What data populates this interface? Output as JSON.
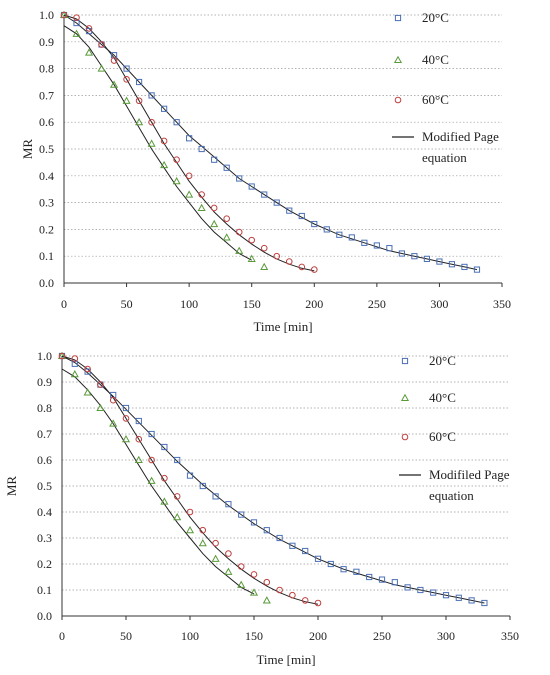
{
  "chart_data": [
    {
      "type": "scatter",
      "title": "",
      "xlabel": "Time [min]",
      "ylabel": "MR",
      "xlim": [
        0,
        350
      ],
      "ylim": [
        0,
        1.0
      ],
      "xticks": [
        "0",
        "50",
        "100",
        "150",
        "200",
        "250",
        "300",
        "350"
      ],
      "yticks": [
        "0.0",
        "0.1",
        "0.2",
        "0.3",
        "0.4",
        "0.5",
        "0.6",
        "0.7",
        "0.8",
        "0.9",
        "1.0"
      ],
      "grid": "horizontal dotted",
      "legend_position": "right",
      "fit_label": "Modified Page equation",
      "fit_label_lines": [
        "Modified Page",
        "equation"
      ],
      "series": [
        {
          "name": "20°C",
          "marker": "square",
          "color": "#4a6fb5",
          "x": [
            0,
            10,
            20,
            30,
            40,
            50,
            60,
            70,
            80,
            90,
            100,
            110,
            120,
            130,
            140,
            150,
            160,
            170,
            180,
            190,
            200,
            210,
            220,
            230,
            240,
            250,
            260,
            270,
            280,
            290,
            300,
            310,
            320,
            330
          ],
          "y": [
            1.0,
            0.97,
            0.94,
            0.89,
            0.85,
            0.8,
            0.75,
            0.7,
            0.65,
            0.6,
            0.54,
            0.5,
            0.46,
            0.43,
            0.39,
            0.36,
            0.33,
            0.3,
            0.27,
            0.25,
            0.22,
            0.2,
            0.18,
            0.17,
            0.15,
            0.14,
            0.13,
            0.11,
            0.1,
            0.09,
            0.08,
            0.07,
            0.06,
            0.05
          ],
          "fit_x": [
            0,
            10,
            20,
            30,
            40,
            50,
            60,
            70,
            80,
            90,
            100,
            110,
            120,
            130,
            140,
            150,
            160,
            170,
            180,
            190,
            200,
            210,
            220,
            230,
            240,
            250,
            260,
            270,
            280,
            290,
            300,
            310,
            320,
            330
          ],
          "fit_y": [
            1.0,
            0.97,
            0.93,
            0.89,
            0.85,
            0.8,
            0.75,
            0.7,
            0.65,
            0.6,
            0.55,
            0.51,
            0.47,
            0.43,
            0.39,
            0.36,
            0.33,
            0.3,
            0.27,
            0.245,
            0.22,
            0.2,
            0.18,
            0.165,
            0.15,
            0.135,
            0.12,
            0.11,
            0.1,
            0.09,
            0.08,
            0.07,
            0.06,
            0.05
          ]
        },
        {
          "name": "40°C",
          "marker": "triangle",
          "color": "#5a9a3a",
          "x": [
            0,
            10,
            20,
            30,
            40,
            50,
            60,
            70,
            80,
            90,
            100,
            110,
            120,
            130,
            140,
            150,
            160
          ],
          "y": [
            1.0,
            0.93,
            0.86,
            0.8,
            0.74,
            0.68,
            0.6,
            0.52,
            0.44,
            0.38,
            0.33,
            0.28,
            0.22,
            0.17,
            0.12,
            0.09,
            0.06
          ],
          "fit_x": [
            0,
            10,
            20,
            30,
            40,
            50,
            60,
            70,
            80,
            90,
            100,
            110,
            120,
            130,
            140,
            150
          ],
          "fit_y": [
            0.96,
            0.93,
            0.88,
            0.81,
            0.74,
            0.66,
            0.58,
            0.5,
            0.43,
            0.36,
            0.3,
            0.24,
            0.19,
            0.15,
            0.11,
            0.085
          ]
        },
        {
          "name": "60°C",
          "marker": "circle",
          "color": "#c04040",
          "x": [
            0,
            10,
            20,
            30,
            40,
            50,
            60,
            70,
            80,
            90,
            100,
            110,
            120,
            130,
            140,
            150,
            160,
            170,
            180,
            190,
            200
          ],
          "y": [
            1.0,
            0.99,
            0.95,
            0.89,
            0.83,
            0.76,
            0.68,
            0.6,
            0.53,
            0.46,
            0.4,
            0.33,
            0.28,
            0.24,
            0.19,
            0.16,
            0.13,
            0.1,
            0.08,
            0.06,
            0.05
          ],
          "fit_x": [
            0,
            10,
            20,
            30,
            40,
            50,
            60,
            70,
            80,
            90,
            100,
            110,
            120,
            130,
            140,
            150,
            160,
            170,
            180,
            190,
            200
          ],
          "fit_y": [
            1.0,
            0.985,
            0.95,
            0.9,
            0.84,
            0.76,
            0.68,
            0.6,
            0.52,
            0.45,
            0.38,
            0.32,
            0.265,
            0.22,
            0.18,
            0.145,
            0.115,
            0.09,
            0.07,
            0.055,
            0.045
          ]
        }
      ]
    },
    {
      "type": "scatter",
      "title": "",
      "xlabel": "Time [min]",
      "ylabel": "MR",
      "xlim": [
        0,
        350
      ],
      "ylim": [
        0,
        1.0
      ],
      "xticks": [
        "0",
        "50",
        "100",
        "150",
        "200",
        "250",
        "300",
        "350"
      ],
      "yticks": [
        "0.0",
        "0.1",
        "0.2",
        "0.3",
        "0.4",
        "0.5",
        "0.6",
        "0.7",
        "0.8",
        "0.9",
        "1.0"
      ],
      "grid": "horizontal dotted",
      "legend_position": "right",
      "fit_label": "Modifiled Page equation",
      "fit_label_lines": [
        "Modifiled Page",
        "equation"
      ],
      "series": [
        {
          "name": "20°C",
          "marker": "square",
          "color": "#4a6fb5",
          "x": [
            0,
            10,
            20,
            30,
            40,
            50,
            60,
            70,
            80,
            90,
            100,
            110,
            120,
            130,
            140,
            150,
            160,
            170,
            180,
            190,
            200,
            210,
            220,
            230,
            240,
            250,
            260,
            270,
            280,
            290,
            300,
            310,
            320,
            330
          ],
          "y": [
            1.0,
            0.97,
            0.94,
            0.89,
            0.85,
            0.8,
            0.75,
            0.7,
            0.65,
            0.6,
            0.54,
            0.5,
            0.46,
            0.43,
            0.39,
            0.36,
            0.33,
            0.3,
            0.27,
            0.25,
            0.22,
            0.2,
            0.18,
            0.17,
            0.15,
            0.14,
            0.13,
            0.11,
            0.1,
            0.09,
            0.08,
            0.07,
            0.06,
            0.05
          ],
          "fit_x": [
            0,
            10,
            20,
            30,
            40,
            50,
            60,
            70,
            80,
            90,
            100,
            110,
            120,
            130,
            140,
            150,
            160,
            170,
            180,
            190,
            200,
            210,
            220,
            230,
            240,
            250,
            260,
            270,
            280,
            290,
            300,
            310,
            320,
            330
          ],
          "fit_y": [
            1.0,
            0.975,
            0.935,
            0.89,
            0.845,
            0.795,
            0.745,
            0.695,
            0.645,
            0.595,
            0.55,
            0.505,
            0.465,
            0.425,
            0.39,
            0.355,
            0.325,
            0.295,
            0.27,
            0.245,
            0.22,
            0.2,
            0.18,
            0.165,
            0.15,
            0.135,
            0.12,
            0.11,
            0.1,
            0.09,
            0.08,
            0.07,
            0.06,
            0.05
          ]
        },
        {
          "name": "40°C",
          "marker": "triangle",
          "color": "#5a9a3a",
          "x": [
            0,
            10,
            20,
            30,
            40,
            50,
            60,
            70,
            80,
            90,
            100,
            110,
            120,
            130,
            140,
            150,
            160
          ],
          "y": [
            1.0,
            0.93,
            0.86,
            0.8,
            0.74,
            0.68,
            0.6,
            0.52,
            0.44,
            0.38,
            0.33,
            0.28,
            0.22,
            0.17,
            0.12,
            0.09,
            0.06
          ],
          "fit_x": [
            0,
            10,
            20,
            30,
            40,
            50,
            60,
            70,
            80,
            90,
            100,
            110,
            120,
            130,
            140,
            150
          ],
          "fit_y": [
            0.95,
            0.92,
            0.87,
            0.81,
            0.74,
            0.66,
            0.58,
            0.5,
            0.43,
            0.36,
            0.3,
            0.24,
            0.19,
            0.15,
            0.11,
            0.085
          ]
        },
        {
          "name": "60°C",
          "marker": "circle",
          "color": "#c04040",
          "x": [
            0,
            10,
            20,
            30,
            40,
            50,
            60,
            70,
            80,
            90,
            100,
            110,
            120,
            130,
            140,
            150,
            160,
            170,
            180,
            190,
            200
          ],
          "y": [
            1.0,
            0.99,
            0.95,
            0.89,
            0.83,
            0.76,
            0.68,
            0.6,
            0.53,
            0.46,
            0.4,
            0.33,
            0.28,
            0.24,
            0.19,
            0.16,
            0.13,
            0.1,
            0.08,
            0.06,
            0.05
          ],
          "fit_x": [
            0,
            10,
            20,
            30,
            40,
            50,
            60,
            70,
            80,
            90,
            100,
            110,
            120,
            130,
            140,
            150,
            160,
            170,
            180,
            190,
            200
          ],
          "fit_y": [
            1.0,
            0.985,
            0.95,
            0.9,
            0.84,
            0.76,
            0.68,
            0.6,
            0.52,
            0.45,
            0.38,
            0.32,
            0.265,
            0.22,
            0.18,
            0.145,
            0.115,
            0.09,
            0.07,
            0.055,
            0.045
          ]
        }
      ]
    }
  ]
}
